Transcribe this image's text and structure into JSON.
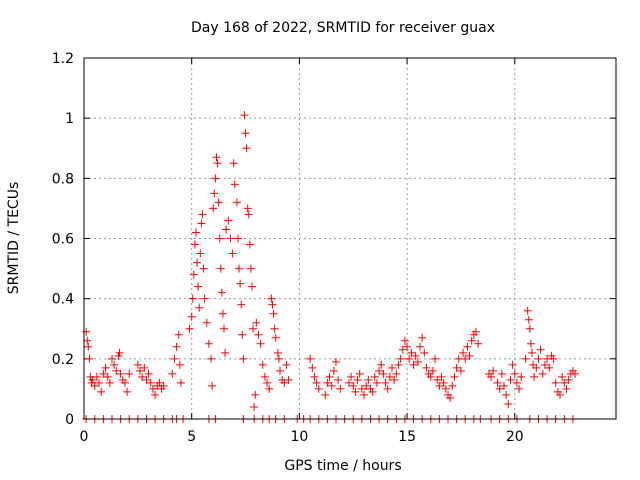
{
  "chart_data": {
    "type": "scatter",
    "title": "Day 168 of 2022, SRMTID for receiver guax",
    "xlabel": "GPS time / hours",
    "ylabel": "SRMTID / TECUs",
    "xlim": [
      0,
      24.7
    ],
    "ylim": [
      0,
      1.2
    ],
    "x_ticks": [
      0,
      5,
      10,
      15,
      20
    ],
    "x_tick_labels": [
      "0",
      "5",
      "10",
      "15",
      "20"
    ],
    "y_ticks": [
      0,
      0.2,
      0.4,
      0.6,
      0.8,
      1.0,
      1.2
    ],
    "y_tick_labels": [
      "0",
      "0.2",
      "0.4",
      "0.6",
      "0.8",
      "1",
      "1.2"
    ],
    "grid": true,
    "marker": "+",
    "marker_color": "#ff0000",
    "series": [
      {
        "name": "SRMTID",
        "points": [
          [
            0.1,
            0.29
          ],
          [
            0.15,
            0.26
          ],
          [
            0.2,
            0.24
          ],
          [
            0.25,
            0.2
          ],
          [
            0.3,
            0.14
          ],
          [
            0.35,
            0.12
          ],
          [
            0.4,
            0.13
          ],
          [
            0.5,
            0.11
          ],
          [
            0.6,
            0.14
          ],
          [
            0.7,
            0.12
          ],
          [
            0.8,
            0.09
          ],
          [
            0.9,
            0.15
          ],
          [
            1.0,
            0.17
          ],
          [
            1.1,
            0.14
          ],
          [
            1.2,
            0.12
          ],
          [
            1.3,
            0.2
          ],
          [
            1.4,
            0.18
          ],
          [
            1.5,
            0.16
          ],
          [
            1.6,
            0.21
          ],
          [
            1.65,
            0.22
          ],
          [
            1.7,
            0.15
          ],
          [
            1.8,
            0.13
          ],
          [
            1.9,
            0.12
          ],
          [
            2.0,
            0.09
          ],
          [
            2.1,
            0.15
          ],
          [
            2.5,
            0.18
          ],
          [
            2.6,
            0.16
          ],
          [
            2.7,
            0.14
          ],
          [
            2.8,
            0.17
          ],
          [
            2.9,
            0.13
          ],
          [
            3.0,
            0.15
          ],
          [
            3.1,
            0.12
          ],
          [
            3.2,
            0.1
          ],
          [
            3.3,
            0.08
          ],
          [
            3.4,
            0.11
          ],
          [
            3.5,
            0.12
          ],
          [
            3.6,
            0.1
          ],
          [
            3.7,
            0.11
          ],
          [
            4.1,
            0.15
          ],
          [
            4.2,
            0.2
          ],
          [
            4.3,
            0.24
          ],
          [
            4.4,
            0.28
          ],
          [
            4.45,
            0.18
          ],
          [
            4.5,
            0.12
          ],
          [
            4.9,
            0.3
          ],
          [
            5.0,
            0.34
          ],
          [
            5.05,
            0.4
          ],
          [
            5.1,
            0.48
          ],
          [
            5.15,
            0.58
          ],
          [
            5.2,
            0.62
          ],
          [
            5.25,
            0.52
          ],
          [
            5.3,
            0.44
          ],
          [
            5.35,
            0.37
          ],
          [
            5.4,
            0.55
          ],
          [
            5.45,
            0.65
          ],
          [
            5.5,
            0.68
          ],
          [
            5.55,
            0.5
          ],
          [
            5.6,
            0.4
          ],
          [
            5.7,
            0.32
          ],
          [
            5.8,
            0.25
          ],
          [
            5.9,
            0.2
          ],
          [
            5.95,
            0.11
          ],
          [
            6.0,
            0.7
          ],
          [
            6.05,
            0.75
          ],
          [
            6.1,
            0.8
          ],
          [
            6.15,
            0.87
          ],
          [
            6.2,
            0.85
          ],
          [
            6.25,
            0.72
          ],
          [
            6.3,
            0.6
          ],
          [
            6.35,
            0.5
          ],
          [
            6.4,
            0.42
          ],
          [
            6.45,
            0.35
          ],
          [
            6.5,
            0.3
          ],
          [
            6.55,
            0.22
          ],
          [
            6.6,
            0.63
          ],
          [
            6.7,
            0.66
          ],
          [
            6.8,
            0.6
          ],
          [
            6.9,
            0.55
          ],
          [
            6.95,
            0.85
          ],
          [
            7.0,
            0.78
          ],
          [
            7.1,
            0.72
          ],
          [
            7.15,
            0.6
          ],
          [
            7.2,
            0.5
          ],
          [
            7.25,
            0.45
          ],
          [
            7.3,
            0.38
          ],
          [
            7.35,
            0.28
          ],
          [
            7.4,
            0.2
          ],
          [
            7.45,
            1.01
          ],
          [
            7.5,
            0.95
          ],
          [
            7.55,
            0.9
          ],
          [
            7.6,
            0.7
          ],
          [
            7.65,
            0.68
          ],
          [
            7.7,
            0.58
          ],
          [
            7.75,
            0.5
          ],
          [
            7.8,
            0.44
          ],
          [
            7.85,
            0.3
          ],
          [
            7.9,
            0.04
          ],
          [
            7.95,
            0.08
          ],
          [
            8.0,
            0.32
          ],
          [
            8.1,
            0.28
          ],
          [
            8.2,
            0.25
          ],
          [
            8.3,
            0.18
          ],
          [
            8.4,
            0.14
          ],
          [
            8.5,
            0.12
          ],
          [
            8.6,
            0.1
          ],
          [
            8.7,
            0.4
          ],
          [
            8.75,
            0.38
          ],
          [
            8.8,
            0.35
          ],
          [
            8.85,
            0.3
          ],
          [
            8.9,
            0.27
          ],
          [
            9.0,
            0.22
          ],
          [
            9.05,
            0.2
          ],
          [
            9.1,
            0.16
          ],
          [
            9.2,
            0.13
          ],
          [
            9.3,
            0.12
          ],
          [
            9.4,
            0.18
          ],
          [
            9.5,
            0.13
          ],
          [
            10.5,
            0.2
          ],
          [
            10.6,
            0.17
          ],
          [
            10.7,
            0.14
          ],
          [
            10.8,
            0.12
          ],
          [
            10.9,
            0.1
          ],
          [
            11.2,
            0.08
          ],
          [
            11.3,
            0.12
          ],
          [
            11.4,
            0.14
          ],
          [
            11.5,
            0.11
          ],
          [
            11.6,
            0.16
          ],
          [
            11.7,
            0.19
          ],
          [
            11.8,
            0.13
          ],
          [
            11.9,
            0.1
          ],
          [
            12.3,
            0.12
          ],
          [
            12.4,
            0.14
          ],
          [
            12.5,
            0.11
          ],
          [
            12.6,
            0.09
          ],
          [
            12.7,
            0.13
          ],
          [
            12.8,
            0.15
          ],
          [
            12.9,
            0.1
          ],
          [
            13.0,
            0.08
          ],
          [
            13.1,
            0.11
          ],
          [
            13.2,
            0.13
          ],
          [
            13.3,
            0.1
          ],
          [
            13.4,
            0.09
          ],
          [
            13.5,
            0.14
          ],
          [
            13.6,
            0.12
          ],
          [
            13.7,
            0.16
          ],
          [
            13.8,
            0.18
          ],
          [
            13.9,
            0.15
          ],
          [
            14.0,
            0.12
          ],
          [
            14.1,
            0.1
          ],
          [
            14.2,
            0.14
          ],
          [
            14.3,
            0.17
          ],
          [
            14.4,
            0.13
          ],
          [
            14.5,
            0.15
          ],
          [
            14.6,
            0.18
          ],
          [
            14.7,
            0.2
          ],
          [
            14.8,
            0.23
          ],
          [
            14.9,
            0.26
          ],
          [
            15.0,
            0.24
          ],
          [
            15.1,
            0.2
          ],
          [
            15.2,
            0.22
          ],
          [
            15.3,
            0.18
          ],
          [
            15.4,
            0.21
          ],
          [
            15.5,
            0.19
          ],
          [
            15.6,
            0.24
          ],
          [
            15.7,
            0.27
          ],
          [
            15.8,
            0.22
          ],
          [
            15.9,
            0.17
          ],
          [
            16.0,
            0.15
          ],
          [
            16.1,
            0.14
          ],
          [
            16.2,
            0.16
          ],
          [
            16.3,
            0.2
          ],
          [
            16.4,
            0.13
          ],
          [
            16.5,
            0.11
          ],
          [
            16.6,
            0.14
          ],
          [
            16.7,
            0.12
          ],
          [
            16.8,
            0.1
          ],
          [
            16.9,
            0.08
          ],
          [
            17.0,
            0.07
          ],
          [
            17.1,
            0.11
          ],
          [
            17.2,
            0.14
          ],
          [
            17.3,
            0.17
          ],
          [
            17.4,
            0.2
          ],
          [
            17.5,
            0.16
          ],
          [
            17.6,
            0.22
          ],
          [
            17.7,
            0.2
          ],
          [
            17.8,
            0.24
          ],
          [
            17.9,
            0.21
          ],
          [
            18.0,
            0.26
          ],
          [
            18.1,
            0.28
          ],
          [
            18.2,
            0.29
          ],
          [
            18.3,
            0.25
          ],
          [
            18.8,
            0.15
          ],
          [
            18.9,
            0.14
          ],
          [
            19.0,
            0.16
          ],
          [
            19.2,
            0.12
          ],
          [
            19.3,
            0.1
          ],
          [
            19.4,
            0.15
          ],
          [
            19.5,
            0.11
          ],
          [
            19.6,
            0.08
          ],
          [
            19.7,
            0.05
          ],
          [
            19.8,
            0.13
          ],
          [
            19.9,
            0.18
          ],
          [
            20.0,
            0.15
          ],
          [
            20.1,
            0.12
          ],
          [
            20.2,
            0.1
          ],
          [
            20.3,
            0.14
          ],
          [
            20.5,
            0.2
          ],
          [
            20.6,
            0.36
          ],
          [
            20.65,
            0.33
          ],
          [
            20.7,
            0.3
          ],
          [
            20.75,
            0.25
          ],
          [
            20.8,
            0.22
          ],
          [
            20.85,
            0.18
          ],
          [
            20.9,
            0.14
          ],
          [
            21.0,
            0.17
          ],
          [
            21.1,
            0.2
          ],
          [
            21.2,
            0.23
          ],
          [
            21.3,
            0.15
          ],
          [
            21.4,
            0.18
          ],
          [
            21.5,
            0.2
          ],
          [
            21.6,
            0.17
          ],
          [
            21.7,
            0.21
          ],
          [
            21.8,
            0.2
          ],
          [
            21.9,
            0.12
          ],
          [
            22.0,
            0.09
          ],
          [
            22.1,
            0.08
          ],
          [
            22.2,
            0.14
          ],
          [
            22.3,
            0.12
          ],
          [
            22.4,
            0.1
          ],
          [
            22.5,
            0.13
          ],
          [
            22.6,
            0.15
          ],
          [
            22.7,
            0.16
          ],
          [
            22.8,
            0.15
          ],
          [
            0.1,
            0
          ],
          [
            0.5,
            0
          ],
          [
            0.9,
            0
          ],
          [
            1.3,
            0
          ],
          [
            1.7,
            0
          ],
          [
            2.1,
            0
          ],
          [
            2.5,
            0
          ],
          [
            2.9,
            0
          ],
          [
            3.3,
            0
          ],
          [
            3.7,
            0
          ],
          [
            4.1,
            0
          ],
          [
            4.3,
            0
          ],
          [
            4.6,
            0
          ],
          [
            5.8,
            0
          ],
          [
            6.1,
            0
          ],
          [
            7.4,
            0
          ],
          [
            7.9,
            0
          ],
          [
            8.3,
            0
          ],
          [
            8.6,
            0
          ],
          [
            8.9,
            0
          ],
          [
            9.3,
            0
          ],
          [
            9.9,
            0
          ],
          [
            10.2,
            0
          ],
          [
            10.5,
            0
          ],
          [
            10.9,
            0
          ],
          [
            11.3,
            0
          ],
          [
            11.7,
            0
          ],
          [
            12.1,
            0
          ],
          [
            12.5,
            0
          ],
          [
            12.9,
            0
          ],
          [
            13.3,
            0
          ],
          [
            13.7,
            0
          ],
          [
            14.1,
            0
          ],
          [
            14.5,
            0
          ],
          [
            14.9,
            0
          ],
          [
            15.3,
            0
          ],
          [
            15.7,
            0
          ],
          [
            16.1,
            0
          ],
          [
            16.5,
            0
          ],
          [
            16.9,
            0
          ],
          [
            17.3,
            0
          ],
          [
            17.7,
            0
          ],
          [
            18.1,
            0
          ],
          [
            18.4,
            0
          ],
          [
            18.9,
            0
          ],
          [
            19.3,
            0
          ],
          [
            19.7,
            0
          ],
          [
            20.1,
            0
          ],
          [
            20.7,
            0
          ],
          [
            21.1,
            0
          ],
          [
            21.5,
            0
          ],
          [
            21.9,
            0
          ],
          [
            22.3,
            0
          ],
          [
            22.7,
            0
          ]
        ]
      }
    ]
  }
}
